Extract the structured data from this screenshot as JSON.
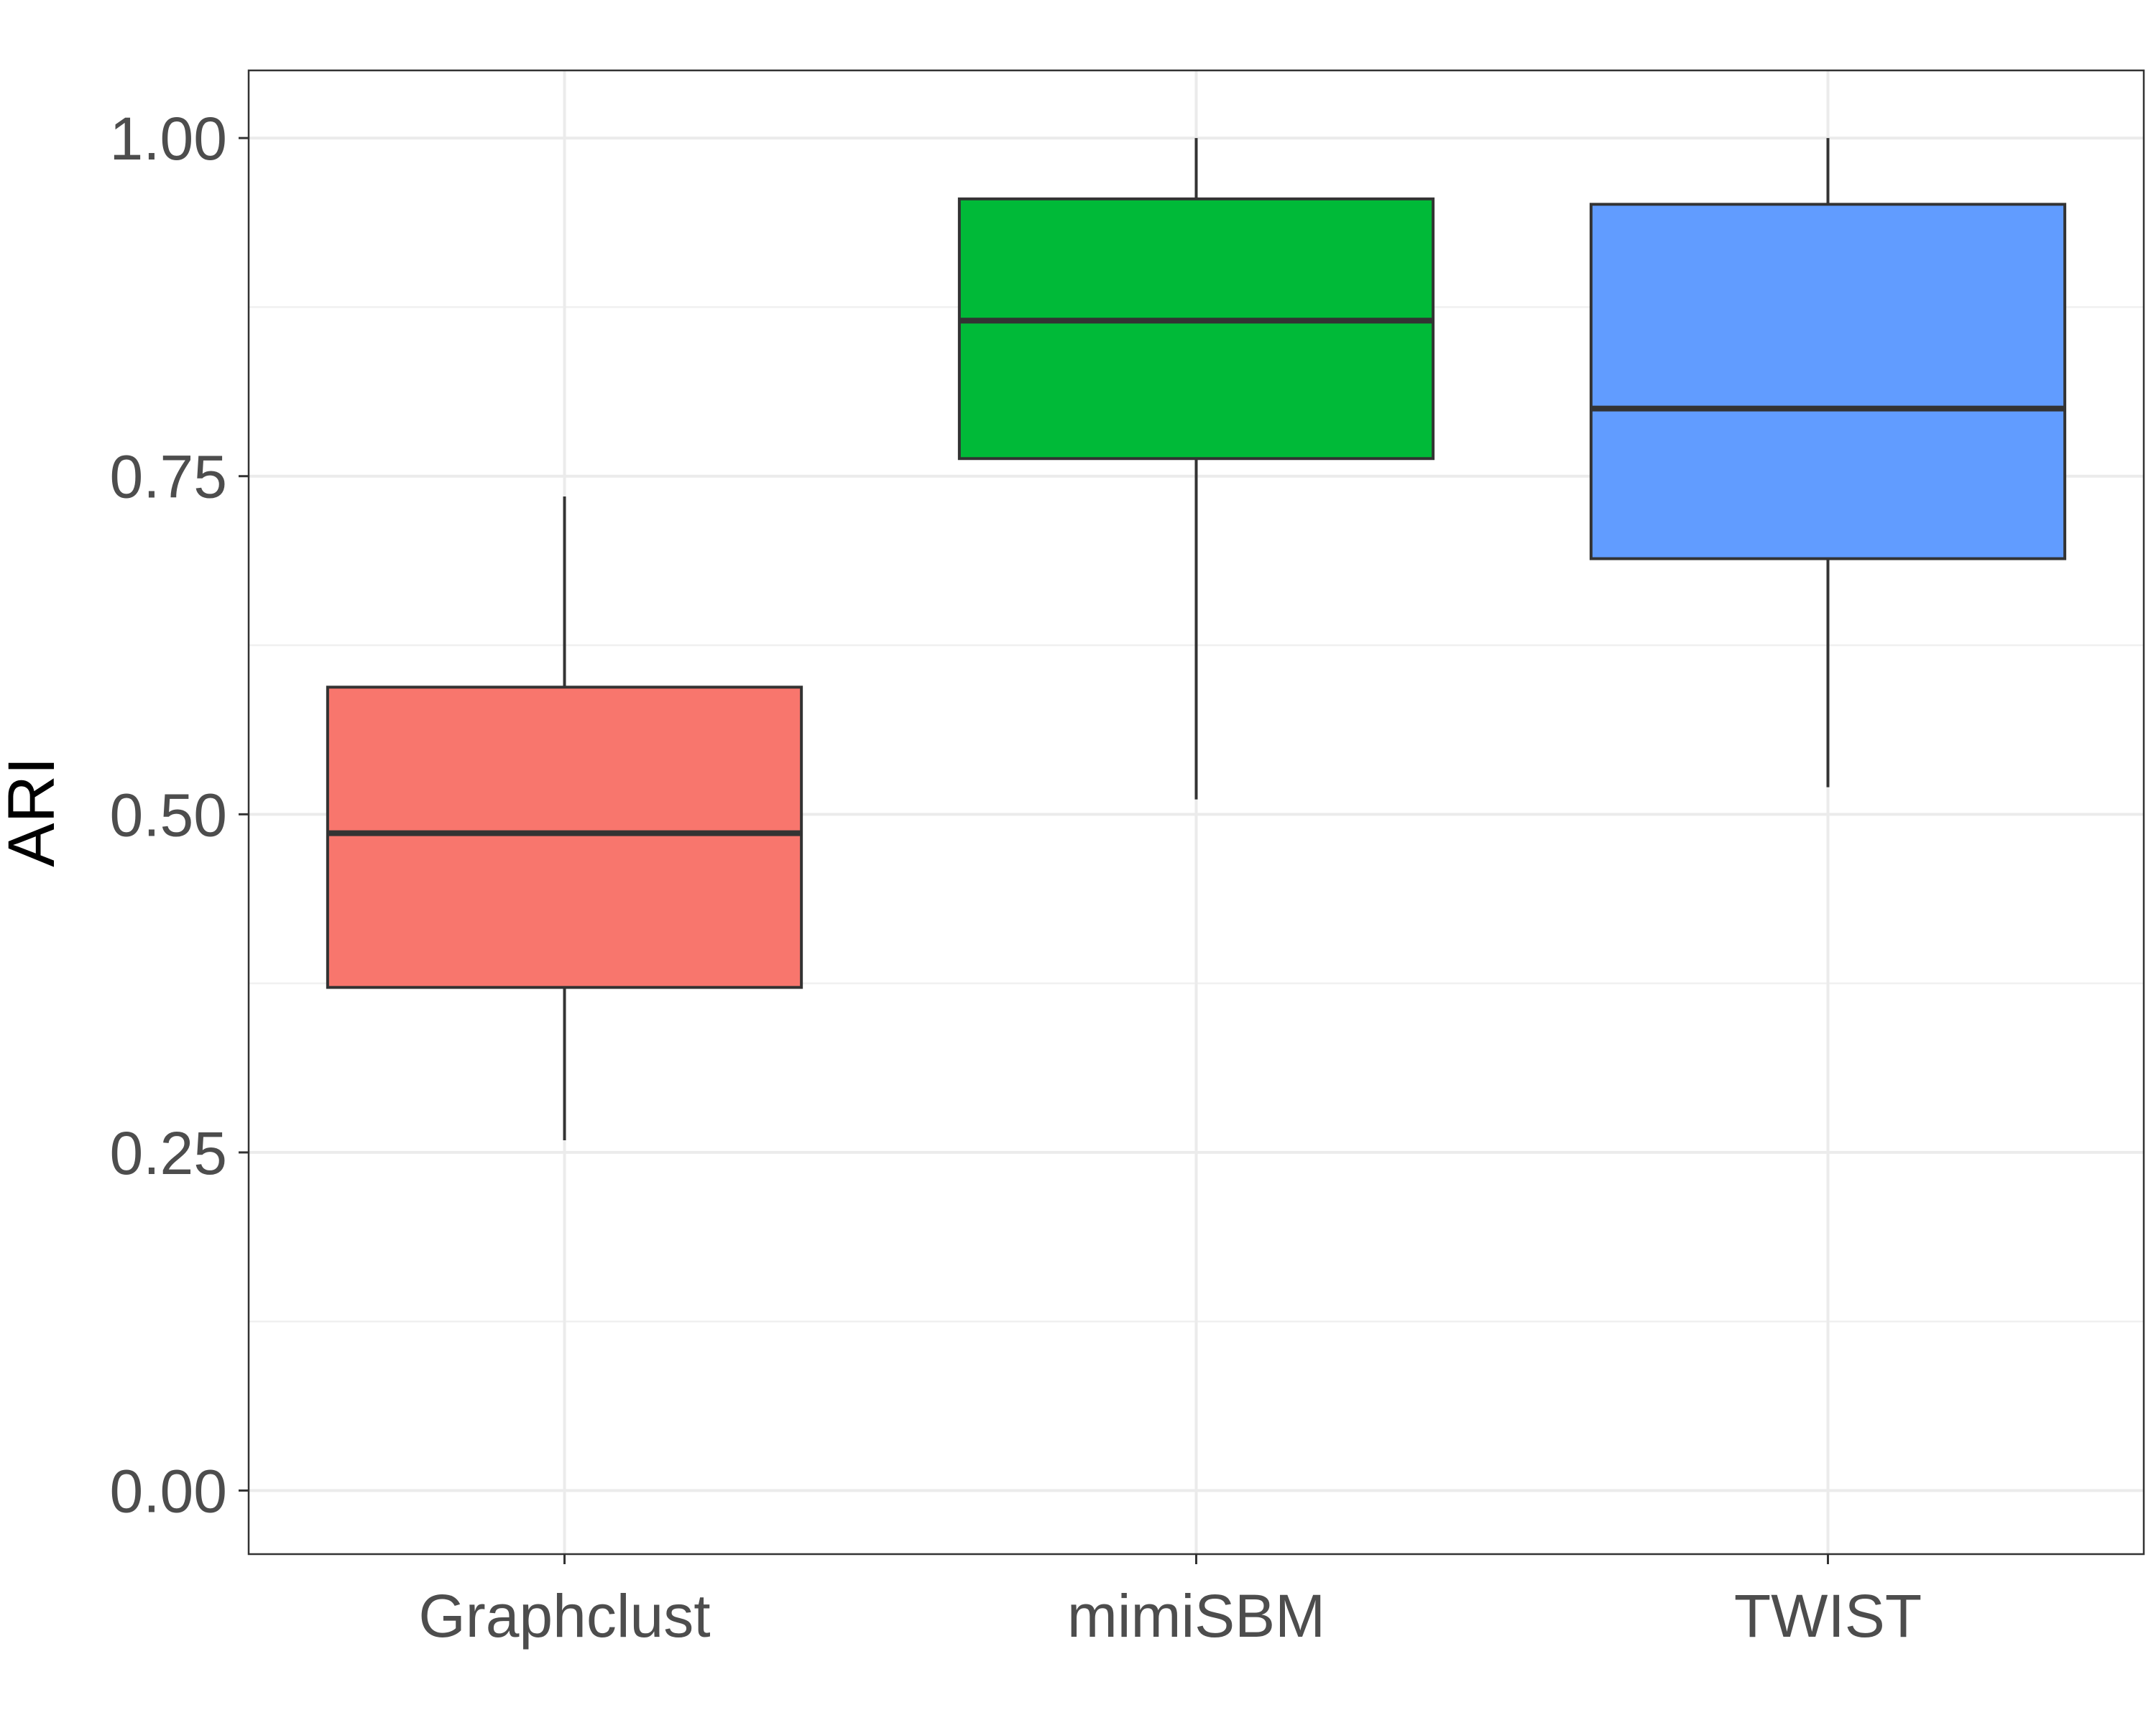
{
  "chart_data": {
    "type": "box",
    "title": "",
    "xlabel": "",
    "ylabel": "ARI",
    "ylim": [
      -0.047,
      1.05
    ],
    "yticks": [
      0.0,
      0.25,
      0.5,
      0.75,
      1.0
    ],
    "ytick_labels": [
      "0.00",
      "0.25",
      "0.50",
      "0.75",
      "1.00"
    ],
    "y_minor_ticks": [
      0.125,
      0.375,
      0.625,
      0.875
    ],
    "grid": true,
    "legend": "none",
    "categories": [
      "Graphclust",
      "mimiSBM",
      "TWIST"
    ],
    "boxes": [
      {
        "category": "Graphclust",
        "whisker_low": 0.259,
        "q1": 0.372,
        "median": 0.486,
        "q3": 0.594,
        "whisker_high": 0.735,
        "color": "#F8766D"
      },
      {
        "category": "mimiSBM",
        "whisker_low": 0.511,
        "q1": 0.763,
        "median": 0.865,
        "q3": 0.955,
        "whisker_high": 1.0,
        "color": "#00BA38"
      },
      {
        "category": "TWIST",
        "whisker_low": 0.52,
        "q1": 0.689,
        "median": 0.8,
        "q3": 0.951,
        "whisker_high": 1.0,
        "color": "#619CFF"
      }
    ]
  }
}
